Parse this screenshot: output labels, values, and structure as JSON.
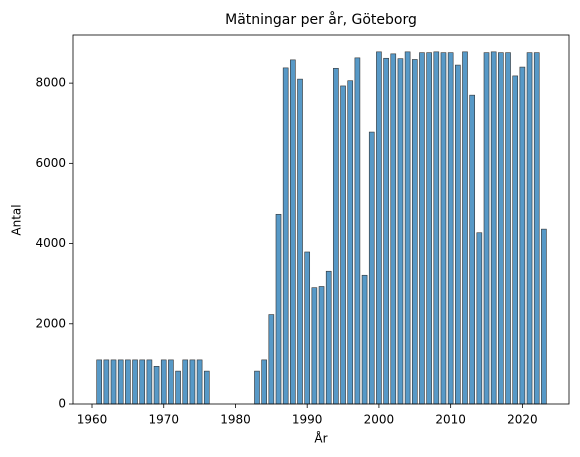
{
  "chart_data": {
    "type": "bar",
    "title": "Mätningar per år, Göteborg",
    "xlabel": "År",
    "ylabel": "Antal",
    "x": [
      1961,
      1962,
      1963,
      1964,
      1965,
      1966,
      1967,
      1968,
      1969,
      1970,
      1971,
      1972,
      1973,
      1974,
      1975,
      1976,
      1983,
      1984,
      1985,
      1986,
      1987,
      1988,
      1989,
      1990,
      1991,
      1992,
      1993,
      1994,
      1995,
      1996,
      1997,
      1998,
      1999,
      2000,
      2001,
      2002,
      2003,
      2004,
      2005,
      2006,
      2007,
      2008,
      2009,
      2010,
      2011,
      2012,
      2013,
      2014,
      2015,
      2016,
      2017,
      2018,
      2019,
      2020,
      2021,
      2022,
      2023
    ],
    "values": [
      1100,
      1100,
      1100,
      1100,
      1100,
      1100,
      1100,
      1100,
      940,
      1100,
      1100,
      820,
      1100,
      1100,
      1100,
      820,
      820,
      1100,
      2230,
      4730,
      8380,
      8580,
      8100,
      3790,
      2900,
      2930,
      3310,
      8370,
      7930,
      8060,
      8630,
      3210,
      6780,
      8780,
      8620,
      8730,
      8610,
      8780,
      8590,
      8760,
      8760,
      8780,
      8760,
      8760,
      8450,
      8780,
      7700,
      4270,
      8760,
      8780,
      8760,
      8760,
      8180,
      8400,
      8760,
      8760,
      4360
    ],
    "color": "#1f77b4",
    "xlim": [
      1957.35,
      2026.5
    ],
    "xticks": [
      1960,
      1970,
      1980,
      1990,
      2000,
      2010,
      2020
    ],
    "ylim": [
      0,
      9200
    ],
    "yticks": [
      0,
      2000,
      4000,
      6000,
      8000
    ]
  }
}
